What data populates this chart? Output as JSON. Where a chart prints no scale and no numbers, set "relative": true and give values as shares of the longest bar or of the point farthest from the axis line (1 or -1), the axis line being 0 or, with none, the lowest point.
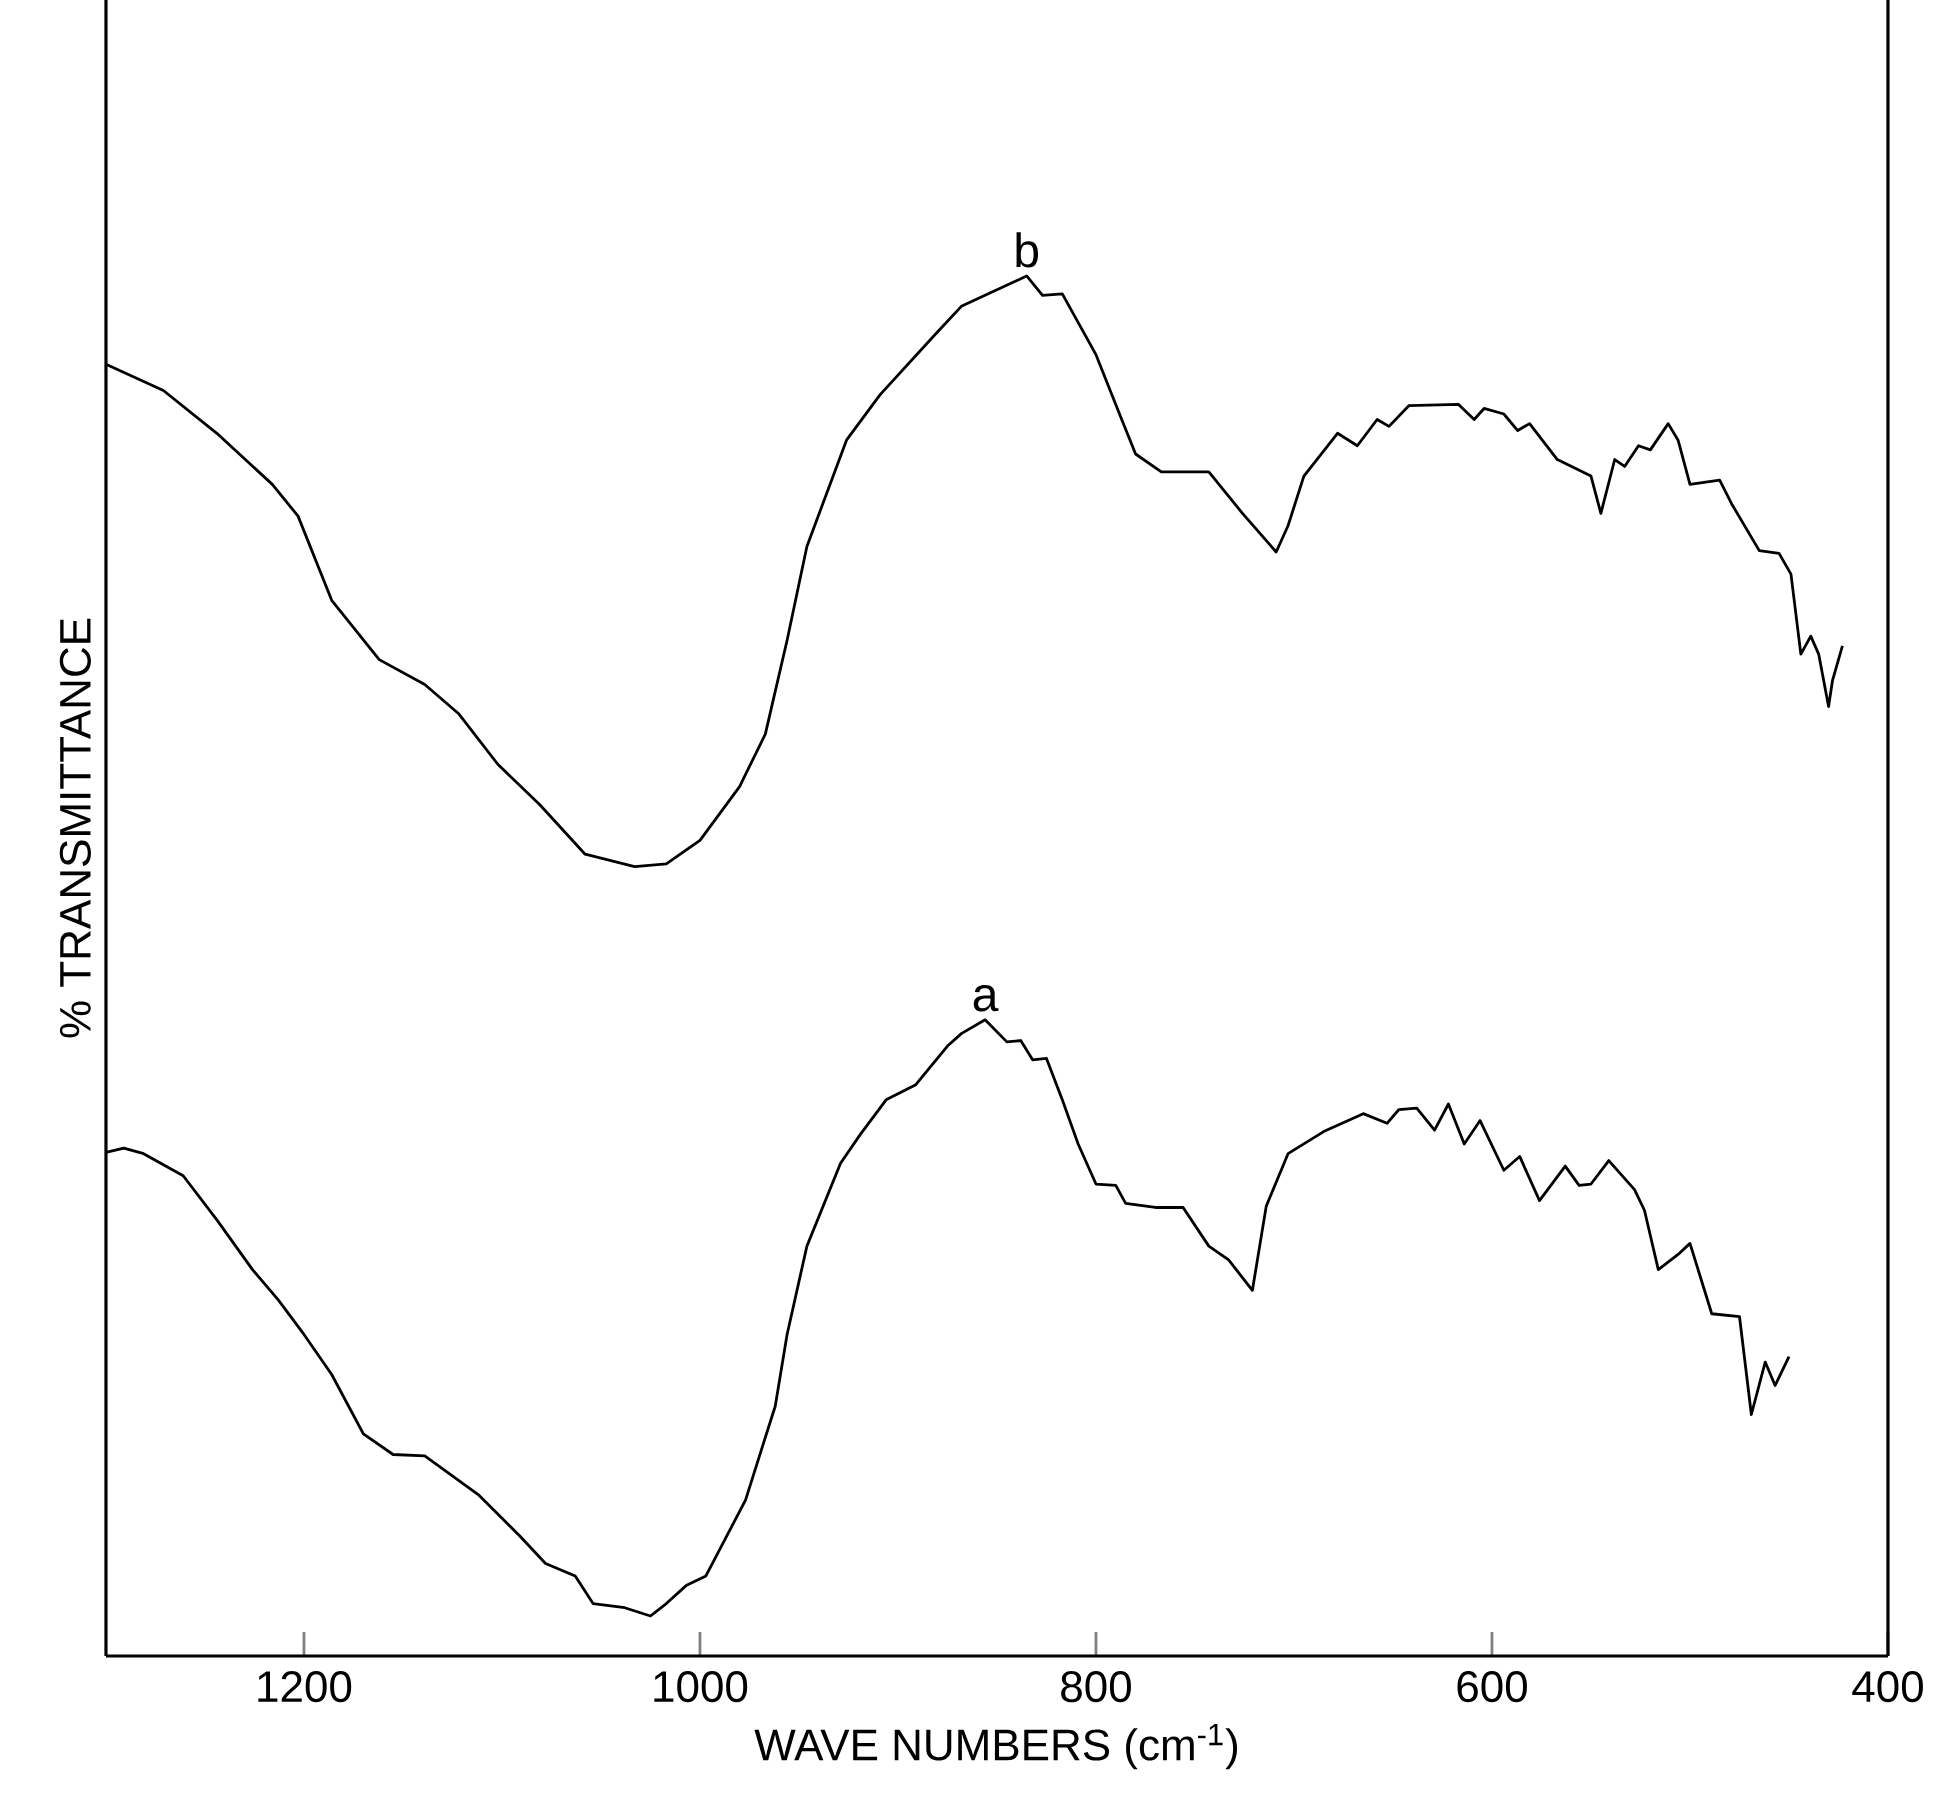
{
  "chart_data": {
    "type": "line",
    "xlabel": "WAVE NUMBERS (cm$^{-1}$)",
    "ylabel": "% TRANSMITTANCE",
    "relative": true,
    "legend": false,
    "xlim": [
      1300,
      400
    ],
    "xticks": [
      1200,
      1000,
      800,
      600,
      400
    ],
    "line_style": "solid",
    "marker": "none",
    "series": [
      {
        "name": "b",
        "color": "#000000",
        "x": [
          1300,
          1271,
          1244,
          1216,
          1203,
          1186,
          1162,
          1139,
          1122,
          1102,
          1081,
          1058,
          1033,
          1017,
          1000,
          980,
          967,
          956,
          946,
          926,
          909,
          881,
          868,
          835,
          827,
          817,
          800,
          787,
          780,
          767,
          743,
          726,
          709,
          703,
          695,
          678,
          668,
          658,
          652,
          642,
          617,
          609,
          604,
          594,
          587,
          581,
          567,
          550,
          545,
          538,
          533,
          526,
          520,
          511,
          506,
          500,
          485,
          479,
          465,
          455,
          449,
          444,
          439,
          435,
          430,
          428,
          423
        ],
        "values": [
          0.936,
          0.917,
          0.886,
          0.849,
          0.826,
          0.765,
          0.722,
          0.704,
          0.683,
          0.646,
          0.617,
          0.581,
          0.572,
          0.574,
          0.591,
          0.63,
          0.668,
          0.736,
          0.804,
          0.881,
          0.914,
          0.958,
          0.978,
          1.0,
          0.986,
          0.987,
          0.943,
          0.896,
          0.871,
          0.858,
          0.858,
          0.828,
          0.8,
          0.819,
          0.855,
          0.886,
          0.877,
          0.896,
          0.891,
          0.906,
          0.907,
          0.896,
          0.904,
          0.9,
          0.888,
          0.893,
          0.867,
          0.855,
          0.828,
          0.867,
          0.862,
          0.877,
          0.874,
          0.893,
          0.881,
          0.849,
          0.852,
          0.835,
          0.801,
          0.799,
          0.784,
          0.726,
          0.739,
          0.726,
          0.688,
          0.707,
          0.732
        ]
      },
      {
        "name": "a",
        "color": "#000000",
        "x": [
          1300,
          1291,
          1281,
          1261,
          1244,
          1226,
          1213,
          1200,
          1186,
          1170,
          1155,
          1139,
          1112,
          1091,
          1078,
          1063,
          1054,
          1038,
          1025,
          1017,
          1007,
          997,
          977,
          962,
          956,
          946,
          929,
          919,
          906,
          891,
          875,
          868,
          856,
          845,
          838,
          832,
          825,
          817,
          809,
          800,
          790,
          785,
          770,
          756,
          743,
          733,
          721,
          714,
          703,
          685,
          665,
          653,
          647,
          638,
          629,
          622,
          614,
          606,
          594,
          586,
          576,
          563,
          556,
          550,
          541,
          528,
          523,
          516,
          506,
          500,
          489,
          475,
          469,
          462,
          457,
          450
        ],
        "values": [
          0.365,
          0.368,
          0.364,
          0.348,
          0.316,
          0.28,
          0.258,
          0.233,
          0.204,
          0.161,
          0.146,
          0.145,
          0.117,
          0.087,
          0.067,
          0.058,
          0.038,
          0.035,
          0.029,
          0.038,
          0.051,
          0.058,
          0.113,
          0.181,
          0.233,
          0.297,
          0.357,
          0.378,
          0.403,
          0.414,
          0.442,
          0.451,
          0.461,
          0.445,
          0.446,
          0.432,
          0.433,
          0.403,
          0.371,
          0.342,
          0.341,
          0.328,
          0.325,
          0.325,
          0.297,
          0.287,
          0.265,
          0.326,
          0.364,
          0.38,
          0.393,
          0.386,
          0.396,
          0.397,
          0.381,
          0.4,
          0.371,
          0.388,
          0.352,
          0.362,
          0.33,
          0.355,
          0.341,
          0.342,
          0.359,
          0.338,
          0.323,
          0.28,
          0.291,
          0.299,
          0.248,
          0.246,
          0.175,
          0.213,
          0.196,
          0.217
        ]
      }
    ]
  }
}
